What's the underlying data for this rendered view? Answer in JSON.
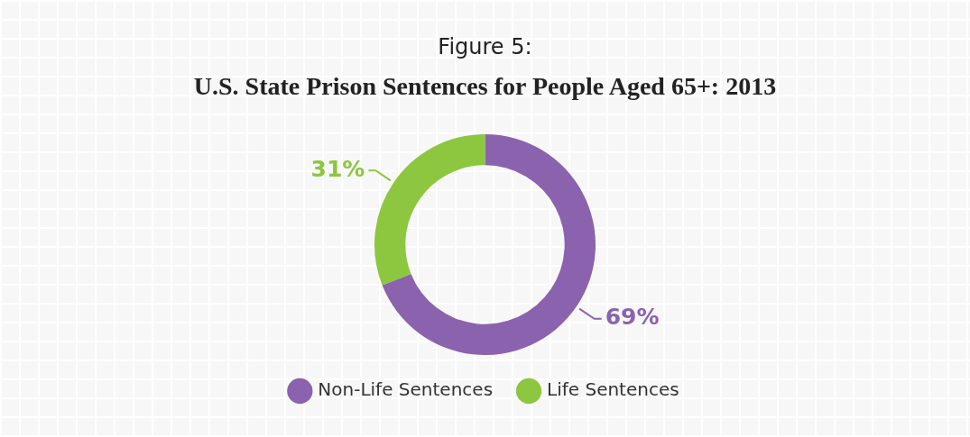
{
  "chart_data": {
    "type": "donut",
    "subtitle": "Figure 5:",
    "title": "U.S. State Prison Sentences for People Aged 65+: 2013",
    "categories": [
      "Non-Life Sentences",
      "Life Sentences"
    ],
    "values": [
      69,
      31
    ],
    "colors": [
      "#8b62ad",
      "#8dc63f"
    ],
    "value_labels": [
      "69%",
      "31%"
    ],
    "legend": "bottom"
  }
}
